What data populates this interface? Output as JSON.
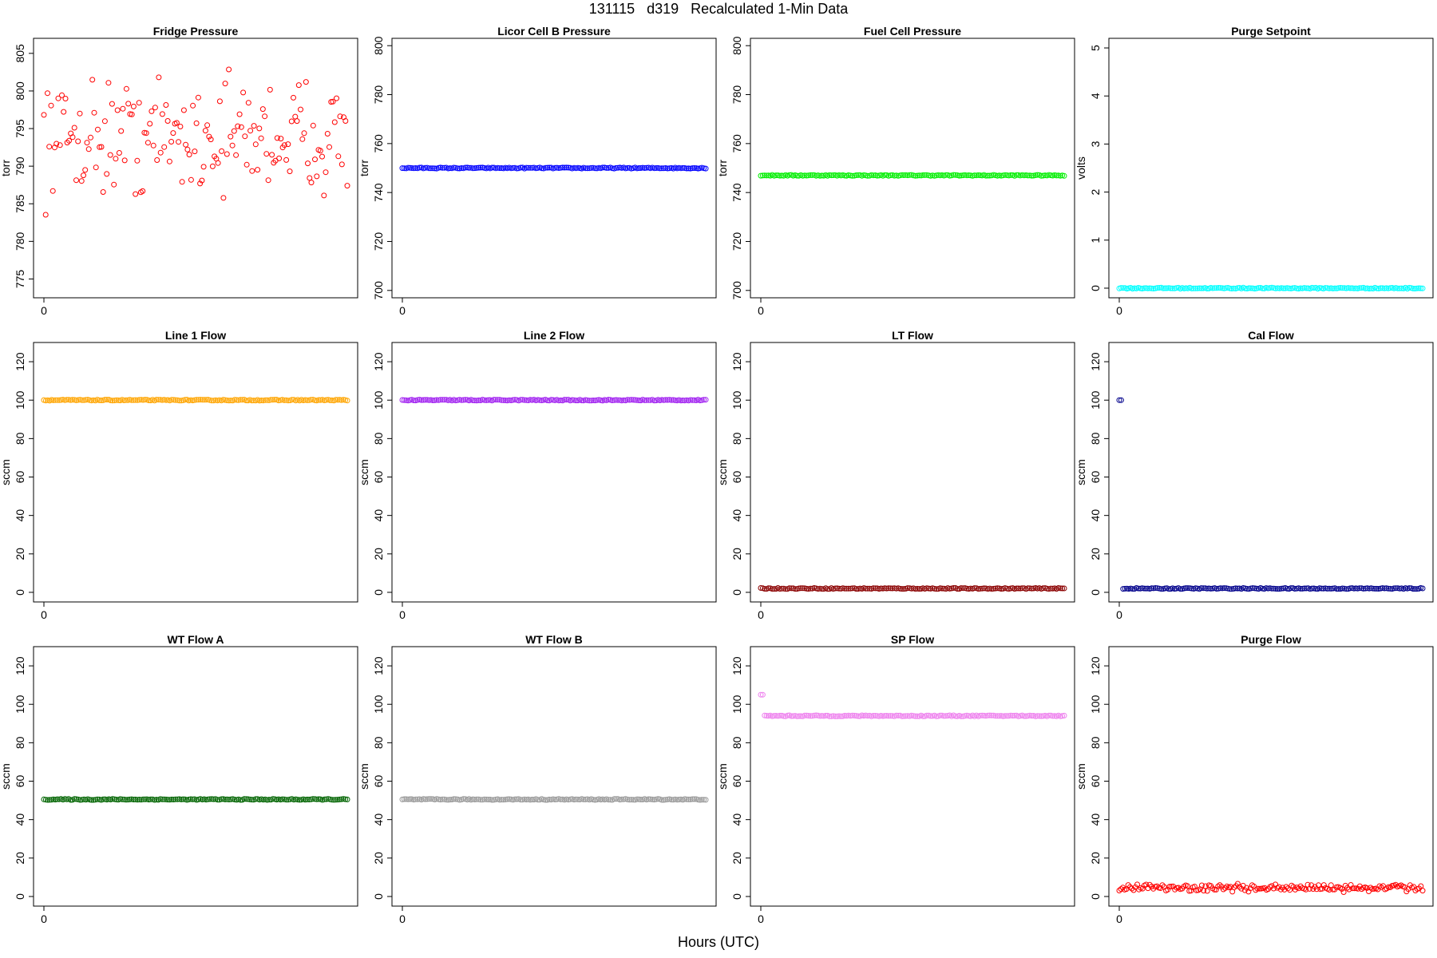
{
  "figure": {
    "title": "131115   d319   Recalculated 1-Min Data",
    "xlabel": "Hours (UTC)"
  },
  "chart_data": [
    {
      "type": "scatter",
      "title": "Fridge Pressure",
      "ylabel": "torr",
      "ylim": [
        772.5,
        807
      ],
      "yticks": [
        775,
        780,
        785,
        790,
        795,
        800,
        805
      ],
      "xticks": [
        0
      ],
      "color": "#ff0000",
      "pattern": "noisy",
      "mean": 794,
      "spread": 7
    },
    {
      "type": "scatter",
      "title": "Licor Cell B Pressure",
      "ylabel": "torr",
      "ylim": [
        697,
        803
      ],
      "yticks": [
        700,
        720,
        740,
        760,
        780,
        800
      ],
      "xticks": [
        0
      ],
      "color": "#0000ff",
      "pattern": "flat",
      "value": 750
    },
    {
      "type": "scatter",
      "title": "Fuel Cell Pressure",
      "ylabel": "torr",
      "ylim": [
        697,
        803
      ],
      "yticks": [
        700,
        720,
        740,
        760,
        780,
        800
      ],
      "xticks": [
        0
      ],
      "color": "#00ee00",
      "pattern": "flat",
      "value": 747
    },
    {
      "type": "scatter",
      "title": "Purge Setpoint",
      "ylabel": "volts",
      "ylim": [
        -0.2,
        5.2
      ],
      "yticks": [
        0,
        1,
        2,
        3,
        4,
        5
      ],
      "xticks": [
        0
      ],
      "color": "#00ffff",
      "pattern": "flat",
      "value": 0
    },
    {
      "type": "scatter",
      "title": "Line 1 Flow",
      "ylabel": "sccm",
      "ylim": [
        -5,
        130
      ],
      "yticks": [
        0,
        20,
        40,
        60,
        80,
        100,
        120
      ],
      "xticks": [
        0
      ],
      "color": "#ffa500",
      "pattern": "flat",
      "value": 100
    },
    {
      "type": "scatter",
      "title": "Line 2 Flow",
      "ylabel": "sccm",
      "ylim": [
        -5,
        130
      ],
      "yticks": [
        0,
        20,
        40,
        60,
        80,
        100,
        120
      ],
      "xticks": [
        0
      ],
      "color": "#a020f0",
      "pattern": "flat",
      "value": 100
    },
    {
      "type": "scatter",
      "title": "LT Flow",
      "ylabel": "sccm",
      "ylim": [
        -5,
        130
      ],
      "yticks": [
        0,
        20,
        40,
        60,
        80,
        100,
        120
      ],
      "xticks": [
        0
      ],
      "color": "#8b0000",
      "pattern": "flat",
      "value": 2
    },
    {
      "type": "scatter",
      "title": "Cal Flow",
      "ylabel": "sccm",
      "ylim": [
        -5,
        130
      ],
      "yticks": [
        0,
        20,
        40,
        60,
        80,
        100,
        120
      ],
      "xticks": [
        0
      ],
      "color": "#00008b",
      "pattern": "flat",
      "value": 2,
      "outliers": [
        {
          "i": 0,
          "y": 100
        },
        {
          "i": 1,
          "y": 100
        }
      ]
    },
    {
      "type": "scatter",
      "title": "WT Flow A",
      "ylabel": "sccm",
      "ylim": [
        -5,
        130
      ],
      "yticks": [
        0,
        20,
        40,
        60,
        80,
        100,
        120
      ],
      "xticks": [
        0
      ],
      "color": "#006400",
      "pattern": "flat",
      "value": 50.5
    },
    {
      "type": "scatter",
      "title": "WT Flow B",
      "ylabel": "sccm",
      "ylim": [
        -5,
        130
      ],
      "yticks": [
        0,
        20,
        40,
        60,
        80,
        100,
        120
      ],
      "xticks": [
        0
      ],
      "color": "#999999",
      "pattern": "flat",
      "value": 50.5
    },
    {
      "type": "scatter",
      "title": "SP Flow",
      "ylabel": "sccm",
      "ylim": [
        -5,
        130
      ],
      "yticks": [
        0,
        20,
        40,
        60,
        80,
        100,
        120
      ],
      "xticks": [
        0
      ],
      "color": "#ee82ee",
      "pattern": "flat",
      "value": 94,
      "outliers": [
        {
          "i": 0,
          "y": 105
        },
        {
          "i": 1,
          "y": 105
        }
      ]
    },
    {
      "type": "scatter",
      "title": "Purge Flow",
      "ylabel": "sccm",
      "ylim": [
        -5,
        130
      ],
      "yticks": [
        0,
        20,
        40,
        60,
        80,
        100,
        120
      ],
      "xticks": [
        0
      ],
      "color": "#ff0000",
      "pattern": "noisy",
      "mean": 4.5,
      "spread": 1.8
    }
  ]
}
